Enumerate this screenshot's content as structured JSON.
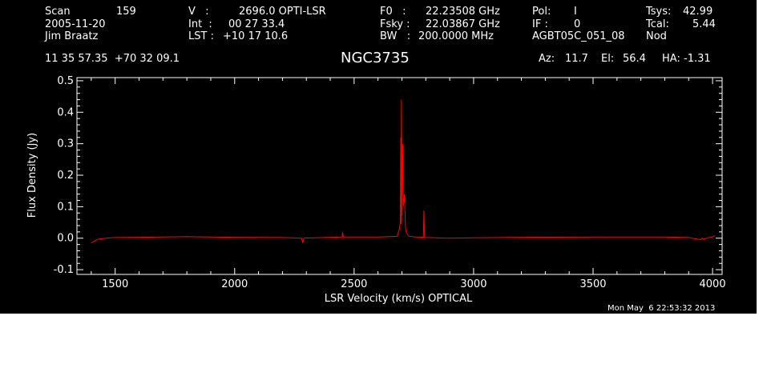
{
  "header": {
    "scan_label": "Scan",
    "scan_value": "159",
    "date": "2005-11-20",
    "observer": "Jim Braatz",
    "v_label": "V   :",
    "v_value": "2696.0 OPTI-LSR",
    "int_label": "Int  :",
    "int_value": "00 27 33.4",
    "lst_label": "LST :",
    "lst_value": "+10 17 10.6",
    "f0_label": "F0   :",
    "f0_value": "22.23508 GHz",
    "fsky_label": "Fsky :",
    "fsky_value": "22.03867 GHz",
    "bw_label": "BW   :",
    "bw_value": "200.0000 MHz",
    "pol_label": "Pol:",
    "pol_value": "I",
    "if_label": "IF :",
    "if_value": "0",
    "project": "AGBT05C_051_08",
    "tsys_label": "Tsys:",
    "tsys_value": "42.99",
    "tcal_label": "Tcal:",
    "tcal_value": "5.44",
    "mode": "Nod",
    "coords": "11 35 57.35  +70 32 09.1",
    "source": "NGC3735",
    "az_label": "Az:",
    "az_value": "11.7",
    "el_label": "El:",
    "el_value": "56.4",
    "ha_label": "HA:",
    "ha_value": "-1.31"
  },
  "timestamp": "Mon May  6 22:53:32 2013",
  "colors": {
    "background": "#000000",
    "axes": "#ffffff",
    "spectrum": "#ff0000"
  },
  "chart_data": {
    "type": "line",
    "xlabel": "LSR Velocity (km/s) OPTICAL",
    "ylabel": "Flux Density (Jy)",
    "xlim": [
      1340,
      4040
    ],
    "ylim": [
      -0.115,
      0.51
    ],
    "xticks": [
      1500,
      2000,
      2500,
      3000,
      3500,
      4000
    ],
    "yticks": [
      -0.1,
      0.0,
      0.1,
      0.2,
      0.3,
      0.4,
      0.5
    ],
    "ytick_labels": [
      "-0.1",
      "0.0",
      "0.1",
      "0.2",
      "0.3",
      "0.4",
      "0.5"
    ],
    "grid": false,
    "series": [
      {
        "color": "#ff0000",
        "x": [
          1400,
          1410,
          1430,
          1460,
          1500,
          1600,
          1800,
          2000,
          2200,
          2280,
          2285,
          2290,
          2400,
          2450,
          2452,
          2455,
          2600,
          2680,
          2690,
          2693,
          2695,
          2696,
          2698,
          2700,
          2703,
          2706,
          2710,
          2715,
          2720,
          2730,
          2760,
          2790,
          2792,
          2795,
          2800,
          2900,
          3000,
          3200,
          3500,
          3800,
          3900,
          3950,
          3955,
          3960,
          4000,
          4010
        ],
        "y": [
          -0.015,
          -0.01,
          -0.003,
          0.0,
          0.002,
          0.003,
          0.005,
          0.003,
          0.002,
          0.0,
          -0.015,
          0.0,
          0.003,
          0.004,
          0.02,
          0.004,
          0.004,
          0.006,
          0.03,
          0.05,
          0.32,
          0.045,
          0.44,
          0.07,
          0.3,
          0.1,
          0.14,
          0.03,
          0.015,
          0.006,
          0.004,
          0.003,
          0.088,
          0.003,
          0.002,
          0.0,
          0.001,
          0.003,
          0.004,
          0.004,
          0.002,
          -0.005,
          0.0,
          -0.003,
          0.005,
          0.008
        ]
      }
    ]
  }
}
